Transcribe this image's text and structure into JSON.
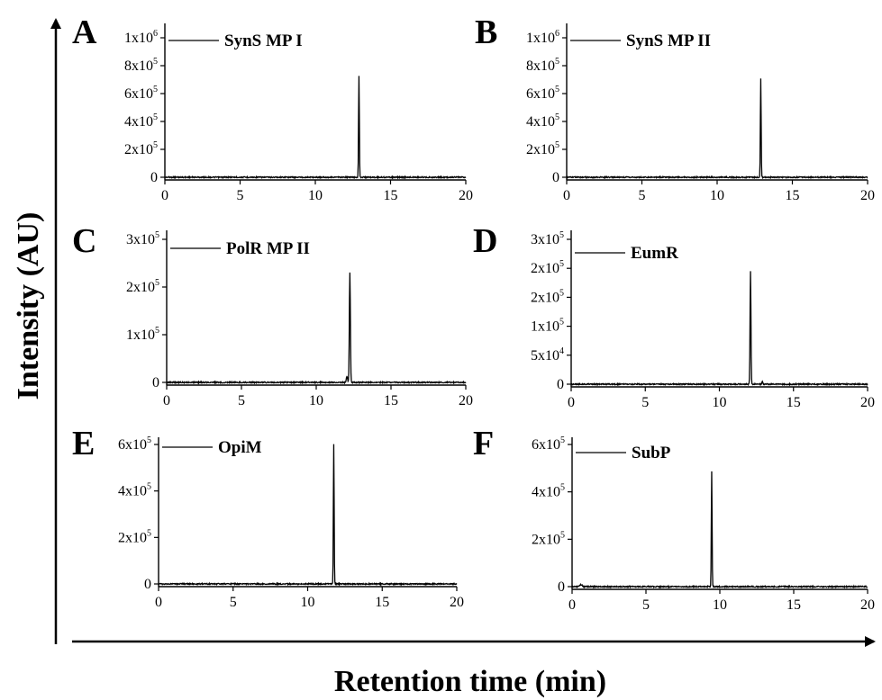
{
  "figure": {
    "ylabel": "Intensity (AU)",
    "xlabel": "Retention time (min)"
  },
  "chart_data": [
    {
      "type": "line",
      "panel": "A",
      "series": [
        {
          "name": "SynS MP I"
        }
      ],
      "xlim": [
        0,
        20
      ],
      "xticks": [
        0,
        5,
        10,
        15,
        20
      ],
      "ylim": [
        -40000,
        1000000
      ],
      "yticks": [
        {
          "value": 0,
          "mant": "0",
          "exp": ""
        },
        {
          "value": 200000,
          "mant": "2x10",
          "exp": "5"
        },
        {
          "value": 400000,
          "mant": "4x10",
          "exp": "5"
        },
        {
          "value": 600000,
          "mant": "6x10",
          "exp": "5"
        },
        {
          "value": 800000,
          "mant": "8x10",
          "exp": "5"
        },
        {
          "value": 1000000,
          "mant": "1x10",
          "exp": "6"
        }
      ],
      "baseline": 0,
      "peaks": [
        {
          "rt": 12.9,
          "height": 730000,
          "width": 0.06
        }
      ]
    },
    {
      "type": "line",
      "panel": "B",
      "series": [
        {
          "name": "SynS MP II"
        }
      ],
      "xlim": [
        0,
        20
      ],
      "xticks": [
        0,
        5,
        10,
        15,
        20
      ],
      "ylim": [
        -40000,
        1000000
      ],
      "yticks": [
        {
          "value": 0,
          "mant": "0",
          "exp": ""
        },
        {
          "value": 200000,
          "mant": "2x10",
          "exp": "5"
        },
        {
          "value": 400000,
          "mant": "4x10",
          "exp": "5"
        },
        {
          "value": 600000,
          "mant": "6x10",
          "exp": "5"
        },
        {
          "value": 800000,
          "mant": "8x10",
          "exp": "5"
        },
        {
          "value": 1000000,
          "mant": "1x10",
          "exp": "6"
        }
      ],
      "baseline": 0,
      "peaks": [
        {
          "rt": 12.9,
          "height": 705000,
          "width": 0.06
        }
      ]
    },
    {
      "type": "line",
      "panel": "C",
      "series": [
        {
          "name": "PolR MP II"
        }
      ],
      "xlim": [
        0,
        20
      ],
      "xticks": [
        0,
        5,
        10,
        15,
        20
      ],
      "ylim": [
        -12000,
        300000
      ],
      "yticks": [
        {
          "value": 0,
          "mant": "0",
          "exp": ""
        },
        {
          "value": 100000,
          "mant": "1x10",
          "exp": "5"
        },
        {
          "value": 200000,
          "mant": "2x10",
          "exp": "5"
        },
        {
          "value": 300000,
          "mant": "3x10",
          "exp": "5"
        }
      ],
      "baseline": 0,
      "peaks": [
        {
          "rt": 12.25,
          "height": 230000,
          "width": 0.08
        },
        {
          "rt": 12.05,
          "height": 12000,
          "width": 0.1
        }
      ]
    },
    {
      "type": "line",
      "panel": "D",
      "series": [
        {
          "name": "EumR"
        }
      ],
      "xlim": [
        0,
        20
      ],
      "xticks": [
        0,
        5,
        10,
        15,
        20
      ],
      "ylim": [
        -9000,
        300000
      ],
      "yticks": [
        {
          "value": 0,
          "mant": "0",
          "exp": ""
        },
        {
          "value": 50000,
          "mant": "5x10",
          "exp": "4"
        },
        {
          "value": 100000,
          "mant": "1x10",
          "exp": "5"
        },
        {
          "value": 150000,
          "mant": "2x10",
          "exp": "5"
        },
        {
          "value": 200000,
          "mant": "2x10",
          "exp": "5"
        },
        {
          "value": 250000,
          "mant": "3x10",
          "exp": "5"
        }
      ],
      "baseline": 0,
      "peaks": [
        {
          "rt": 12.1,
          "height": 195000,
          "width": 0.07
        },
        {
          "rt": 12.9,
          "height": 4000,
          "width": 0.08
        }
      ]
    },
    {
      "type": "line",
      "panel": "E",
      "series": [
        {
          "name": "OpiM"
        }
      ],
      "xlim": [
        0,
        20
      ],
      "xticks": [
        0,
        5,
        10,
        15,
        20
      ],
      "ylim": [
        -20000,
        600000
      ],
      "yticks": [
        {
          "value": 0,
          "mant": "0",
          "exp": ""
        },
        {
          "value": 200000,
          "mant": "2x10",
          "exp": "5"
        },
        {
          "value": 400000,
          "mant": "4x10",
          "exp": "5"
        },
        {
          "value": 600000,
          "mant": "6x10",
          "exp": "5"
        }
      ],
      "baseline": 0,
      "peaks": [
        {
          "rt": 11.75,
          "height": 600000,
          "width": 0.06
        }
      ]
    },
    {
      "type": "line",
      "panel": "F",
      "series": [
        {
          "name": "SubP"
        }
      ],
      "xlim": [
        0,
        20
      ],
      "xticks": [
        0,
        5,
        10,
        15,
        20
      ],
      "ylim": [
        -20000,
        600000
      ],
      "yticks": [
        {
          "value": 0,
          "mant": "0",
          "exp": ""
        },
        {
          "value": 200000,
          "mant": "2x10",
          "exp": "5"
        },
        {
          "value": 400000,
          "mant": "4x10",
          "exp": "5"
        },
        {
          "value": 600000,
          "mant": "6x10",
          "exp": "5"
        }
      ],
      "baseline": 0,
      "peaks": [
        {
          "rt": 9.45,
          "height": 485000,
          "width": 0.06
        },
        {
          "rt": 0.6,
          "height": 8000,
          "width": 0.2
        }
      ]
    }
  ]
}
